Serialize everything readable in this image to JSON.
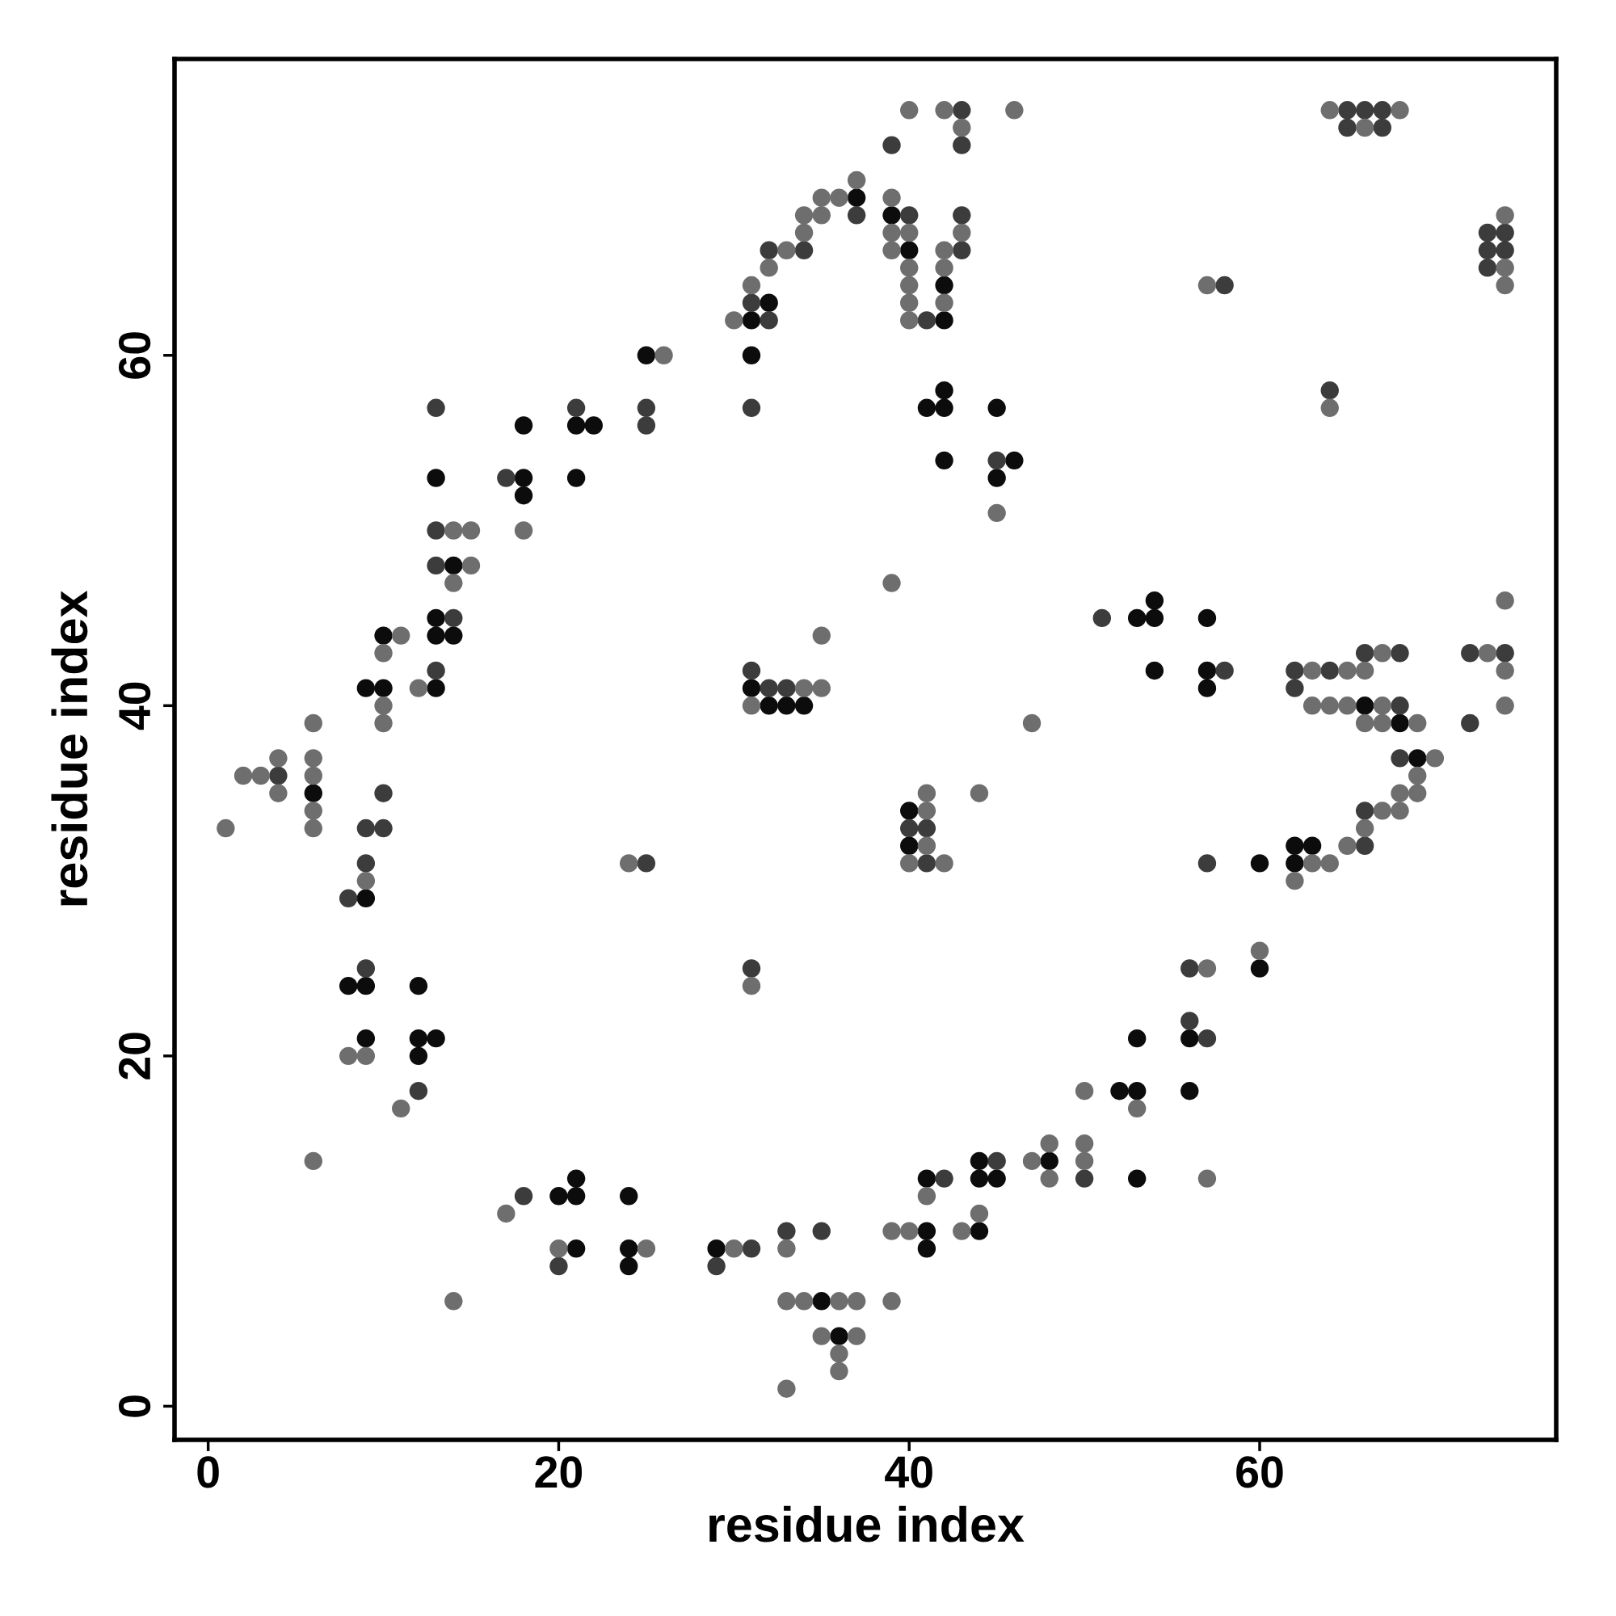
{
  "chart_data": {
    "type": "scatter",
    "xlabel": "residue index",
    "ylabel": "residue index",
    "xlim": [
      -1.92,
      76.92
    ],
    "ylim": [
      -1.92,
      76.92
    ],
    "xticks": [
      0,
      20,
      40,
      60
    ],
    "yticks": [
      0,
      20,
      40,
      60
    ],
    "marker": "circle",
    "series": [
      {
        "color": "#0c0c0c",
        "x": [
          6,
          8,
          9,
          9,
          9,
          9,
          10,
          10,
          12,
          12,
          12,
          13,
          13,
          13,
          13,
          13,
          14,
          14,
          18,
          18,
          18,
          20,
          21,
          21,
          21,
          21,
          21,
          22,
          24,
          24,
          24,
          25,
          29,
          31,
          31,
          31,
          32,
          32,
          33,
          34,
          35,
          36,
          37,
          39,
          40,
          40,
          40,
          41,
          41,
          41,
          41,
          42,
          42,
          42,
          42,
          42,
          44,
          44,
          44,
          45,
          45,
          45,
          46,
          48,
          52,
          53,
          53,
          53,
          53,
          54,
          54,
          54,
          56,
          56,
          57,
          57,
          57,
          60,
          60,
          62,
          62,
          63,
          66,
          68,
          69
        ],
        "values": [
          35,
          24,
          41,
          29,
          24,
          21,
          44,
          41,
          24,
          21,
          20,
          53,
          45,
          44,
          41,
          21,
          48,
          44,
          56,
          53,
          52,
          12,
          56,
          53,
          13,
          12,
          9,
          56,
          12,
          9,
          8,
          60,
          9,
          62,
          60,
          41,
          63,
          40,
          40,
          40,
          6,
          4,
          69,
          68,
          66,
          34,
          32,
          57,
          13,
          10,
          9,
          64,
          62,
          58,
          57,
          54,
          14,
          13,
          10,
          57,
          53,
          13,
          54,
          14,
          18,
          45,
          21,
          18,
          13,
          46,
          45,
          42,
          21,
          18,
          45,
          42,
          41,
          31,
          25,
          32,
          31,
          32,
          40,
          39,
          37
        ]
      },
      {
        "color": "#3c3c3c",
        "x": [
          4,
          8,
          9,
          9,
          9,
          10,
          10,
          12,
          13,
          13,
          13,
          13,
          14,
          17,
          18,
          20,
          21,
          25,
          25,
          25,
          29,
          31,
          31,
          31,
          31,
          31,
          32,
          32,
          32,
          33,
          33,
          34,
          35,
          37,
          39,
          40,
          40,
          41,
          41,
          41,
          42,
          43,
          43,
          43,
          43,
          45,
          45,
          50,
          51,
          56,
          56,
          57,
          57,
          58,
          58,
          62,
          62,
          64,
          64,
          65,
          65,
          66,
          66,
          66,
          66,
          67,
          67,
          68,
          68,
          68,
          72,
          72,
          73,
          73,
          73,
          74,
          74,
          74
        ],
        "values": [
          36,
          29,
          33,
          31,
          25,
          35,
          33,
          18,
          57,
          50,
          48,
          42,
          45,
          53,
          12,
          8,
          57,
          57,
          56,
          31,
          8,
          63,
          57,
          42,
          25,
          9,
          66,
          62,
          41,
          41,
          10,
          66,
          10,
          68,
          72,
          68,
          33,
          62,
          33,
          31,
          13,
          74,
          72,
          68,
          66,
          54,
          14,
          13,
          45,
          25,
          22,
          31,
          21,
          64,
          42,
          42,
          41,
          58,
          42,
          74,
          73,
          74,
          43,
          34,
          32,
          74,
          73,
          43,
          40,
          37,
          43,
          39,
          67,
          66,
          65,
          67,
          66,
          43
        ]
      },
      {
        "color": "#6e6e6e",
        "x": [
          1,
          2,
          3,
          4,
          4,
          6,
          6,
          6,
          6,
          6,
          6,
          8,
          9,
          9,
          10,
          10,
          10,
          11,
          11,
          12,
          14,
          14,
          14,
          15,
          15,
          17,
          18,
          20,
          24,
          25,
          26,
          30,
          30,
          31,
          31,
          31,
          32,
          33,
          33,
          33,
          33,
          34,
          34,
          34,
          34,
          35,
          35,
          35,
          35,
          35,
          36,
          36,
          36,
          36,
          37,
          37,
          37,
          39,
          39,
          39,
          39,
          39,
          39,
          40,
          40,
          40,
          40,
          40,
          40,
          40,
          40,
          41,
          41,
          41,
          41,
          42,
          42,
          42,
          42,
          42,
          43,
          43,
          43,
          44,
          44,
          45,
          46,
          47,
          47,
          48,
          48,
          50,
          50,
          50,
          53,
          57,
          57,
          57,
          60,
          62,
          63,
          63,
          63,
          64,
          64,
          64,
          64,
          65,
          65,
          65,
          66,
          66,
          66,
          66,
          67,
          67,
          67,
          67,
          68,
          68,
          68,
          69,
          69,
          69,
          70,
          73,
          74,
          74,
          74,
          74,
          74,
          74
        ],
        "values": [
          33,
          36,
          36,
          37,
          35,
          39,
          37,
          36,
          34,
          33,
          14,
          20,
          30,
          20,
          43,
          40,
          39,
          44,
          17,
          41,
          50,
          47,
          6,
          50,
          48,
          11,
          50,
          9,
          31,
          9,
          60,
          62,
          9,
          64,
          40,
          24,
          65,
          66,
          9,
          6,
          1,
          68,
          67,
          41,
          6,
          69,
          68,
          44,
          41,
          4,
          69,
          6,
          3,
          2,
          70,
          6,
          4,
          69,
          67,
          66,
          47,
          10,
          6,
          74,
          67,
          65,
          64,
          63,
          62,
          31,
          10,
          35,
          34,
          32,
          12,
          74,
          66,
          65,
          63,
          31,
          73,
          67,
          10,
          35,
          11,
          51,
          74,
          39,
          14,
          15,
          13,
          18,
          15,
          14,
          17,
          64,
          25,
          13,
          26,
          30,
          42,
          40,
          31,
          74,
          57,
          40,
          31,
          42,
          40,
          32,
          73,
          42,
          39,
          33,
          43,
          40,
          39,
          34,
          74,
          35,
          34,
          39,
          36,
          35,
          37,
          43,
          68,
          65,
          64,
          46,
          42,
          40
        ]
      }
    ]
  }
}
